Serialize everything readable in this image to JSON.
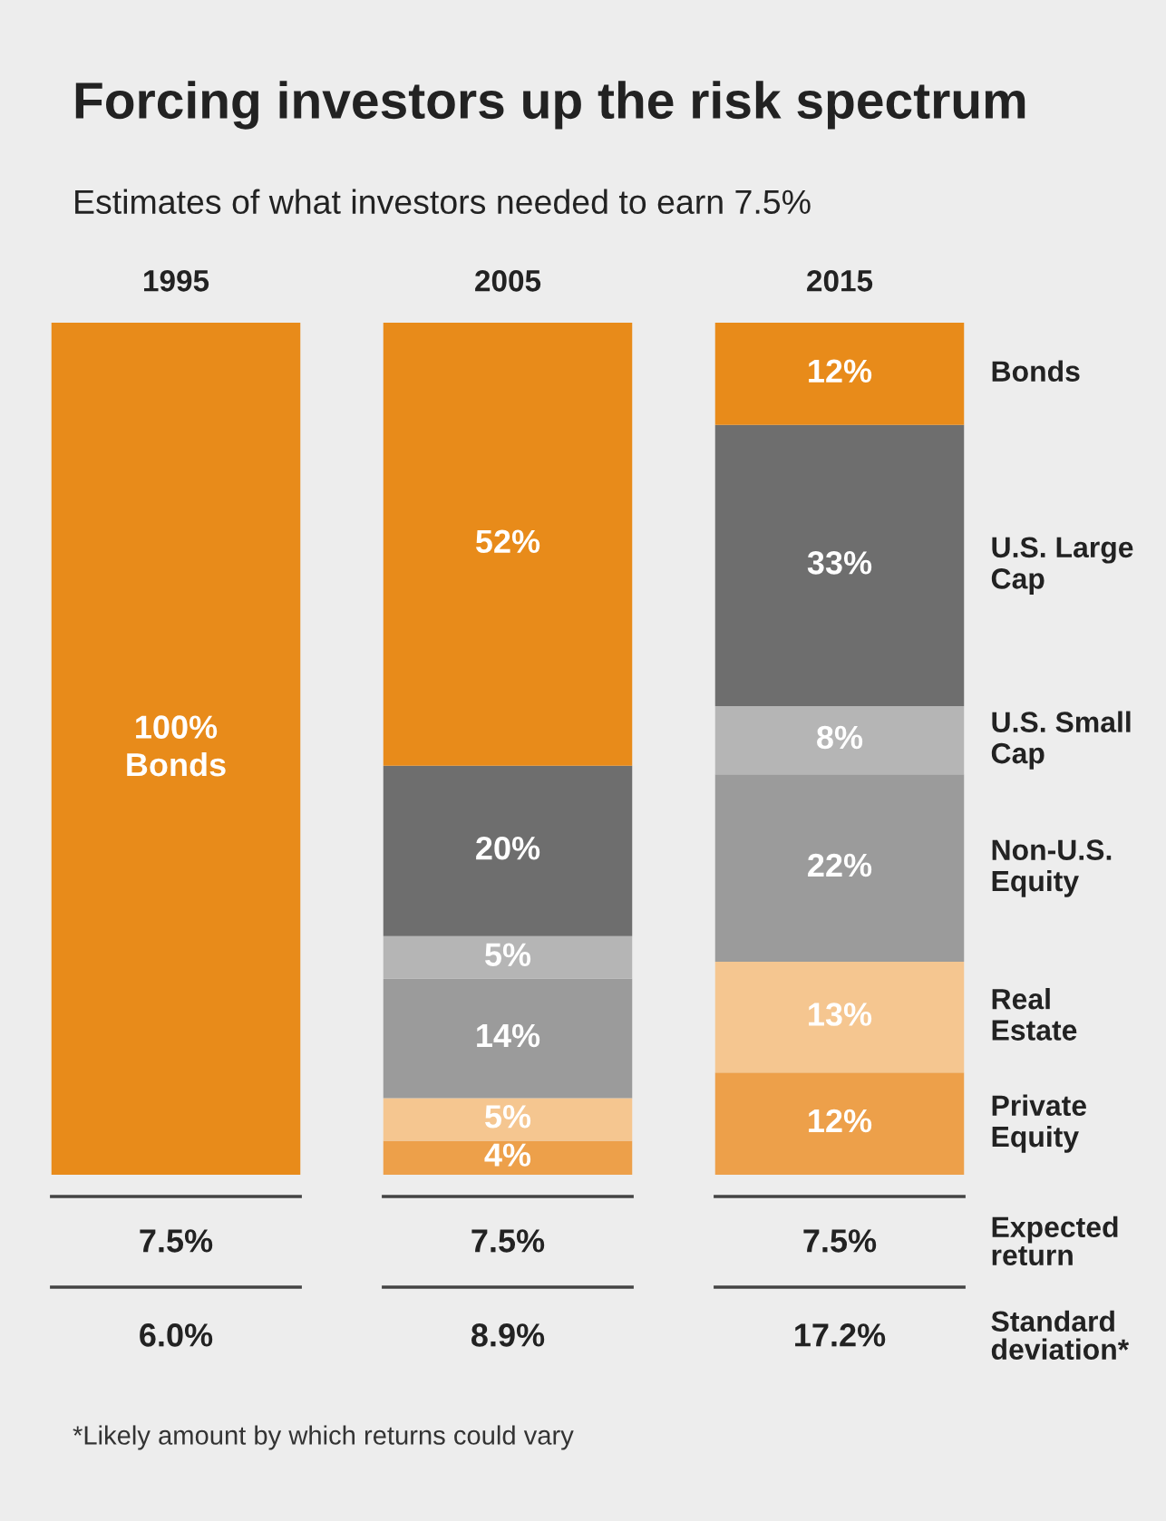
{
  "chart_data": {
    "type": "bar",
    "stacked": true,
    "title": "Forcing investors up the risk spectrum",
    "subtitle": "Estimates of what investors needed to earn 7.5%",
    "categories": [
      "1995",
      "2005",
      "2015"
    ],
    "series": [
      {
        "name": "Private\nEquity",
        "color": "#eda04a",
        "values": [
          0,
          4,
          12
        ],
        "value_labels": [
          null,
          "4%",
          "12%"
        ]
      },
      {
        "name": "Real\nEstate",
        "color": "#f5c690",
        "values": [
          0,
          5,
          13
        ],
        "value_labels": [
          null,
          "5%",
          "13%"
        ]
      },
      {
        "name": "Non-U.S.\nEquity",
        "color": "#9b9b9b",
        "values": [
          0,
          14,
          22
        ],
        "value_labels": [
          null,
          "14%",
          "22%"
        ]
      },
      {
        "name": "U.S. Small\nCap",
        "color": "#b5b5b5",
        "values": [
          0,
          5,
          8
        ],
        "value_labels": [
          null,
          "5%",
          "8%"
        ]
      },
      {
        "name": "U.S. Large\nCap",
        "color": "#6e6e6e",
        "values": [
          0,
          20,
          33
        ],
        "value_labels": [
          null,
          "20%",
          "33%"
        ]
      },
      {
        "name": "Bonds",
        "color": "#e88b1a",
        "values": [
          100,
          52,
          12
        ],
        "value_labels": [
          "100%\nBonds",
          "52%",
          "12%"
        ]
      }
    ],
    "tick_labels": "x",
    "legend": false,
    "grid": false,
    "annotations": [
      "7.5%",
      "7.5%",
      "7.5%",
      "Expected\nreturn",
      "6.0%",
      "8.9%",
      "17.2%",
      "Standard\ndeviation*",
      "*Likely amount by which returns could vary"
    ]
  }
}
